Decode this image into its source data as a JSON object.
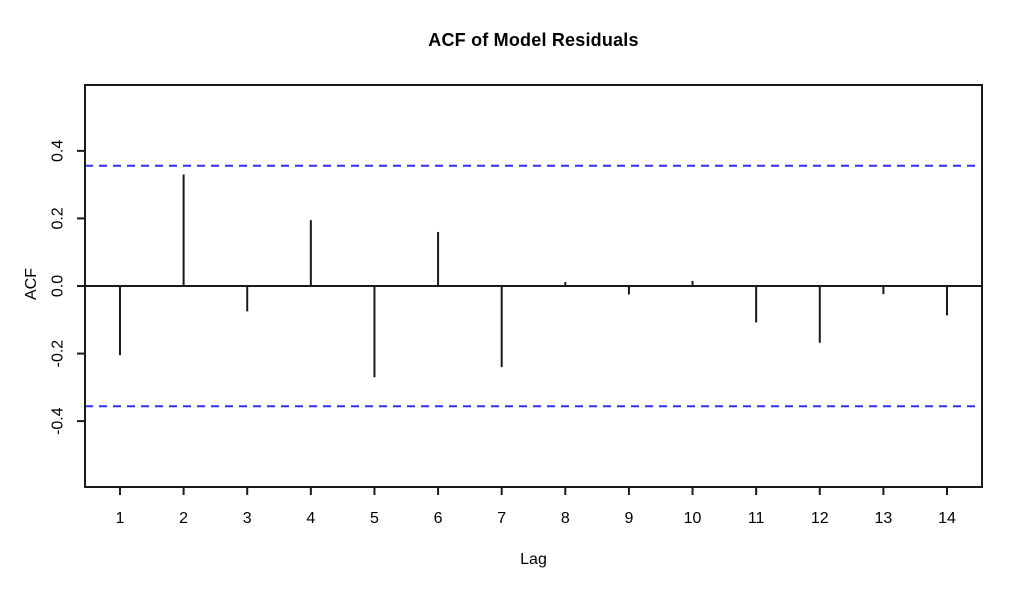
{
  "chart_data": {
    "type": "bar",
    "variant": "acf-stem-plot",
    "title": "ACF of Model Residuals",
    "xlabel": "Lag",
    "ylabel": "ACF",
    "x": [
      1,
      2,
      3,
      4,
      5,
      6,
      7,
      8,
      9,
      10,
      11,
      12,
      13,
      14
    ],
    "values": [
      -0.205,
      0.33,
      -0.075,
      0.195,
      -0.27,
      0.16,
      -0.24,
      0.012,
      -0.025,
      0.015,
      -0.108,
      -0.168,
      -0.024,
      -0.087
    ],
    "conf_band_upper": 0.356,
    "conf_band_lower": -0.356,
    "xticks": [
      1,
      2,
      3,
      4,
      5,
      6,
      7,
      8,
      9,
      10,
      11,
      12,
      13,
      14
    ],
    "xtick_labels": [
      "1",
      "2",
      "3",
      "4",
      "5",
      "6",
      "7",
      "8",
      "9",
      "10",
      "11",
      "12",
      "13",
      "14"
    ],
    "yticks": [
      -0.4,
      -0.2,
      0.0,
      0.2,
      0.4
    ],
    "ytick_labels": [
      "-0.4",
      "-0.2",
      "0.0",
      "0.2",
      "0.4"
    ],
    "xlim": [
      0.45,
      14.55
    ],
    "ylim": [
      -0.595,
      0.595
    ],
    "grid": false,
    "legend": null,
    "colors": {
      "bar": "#1a1a1a",
      "axis": "#1a1a1a",
      "zero_line": "#1a1a1a",
      "conf_band": "#3030ee",
      "background": "#ffffff"
    }
  }
}
